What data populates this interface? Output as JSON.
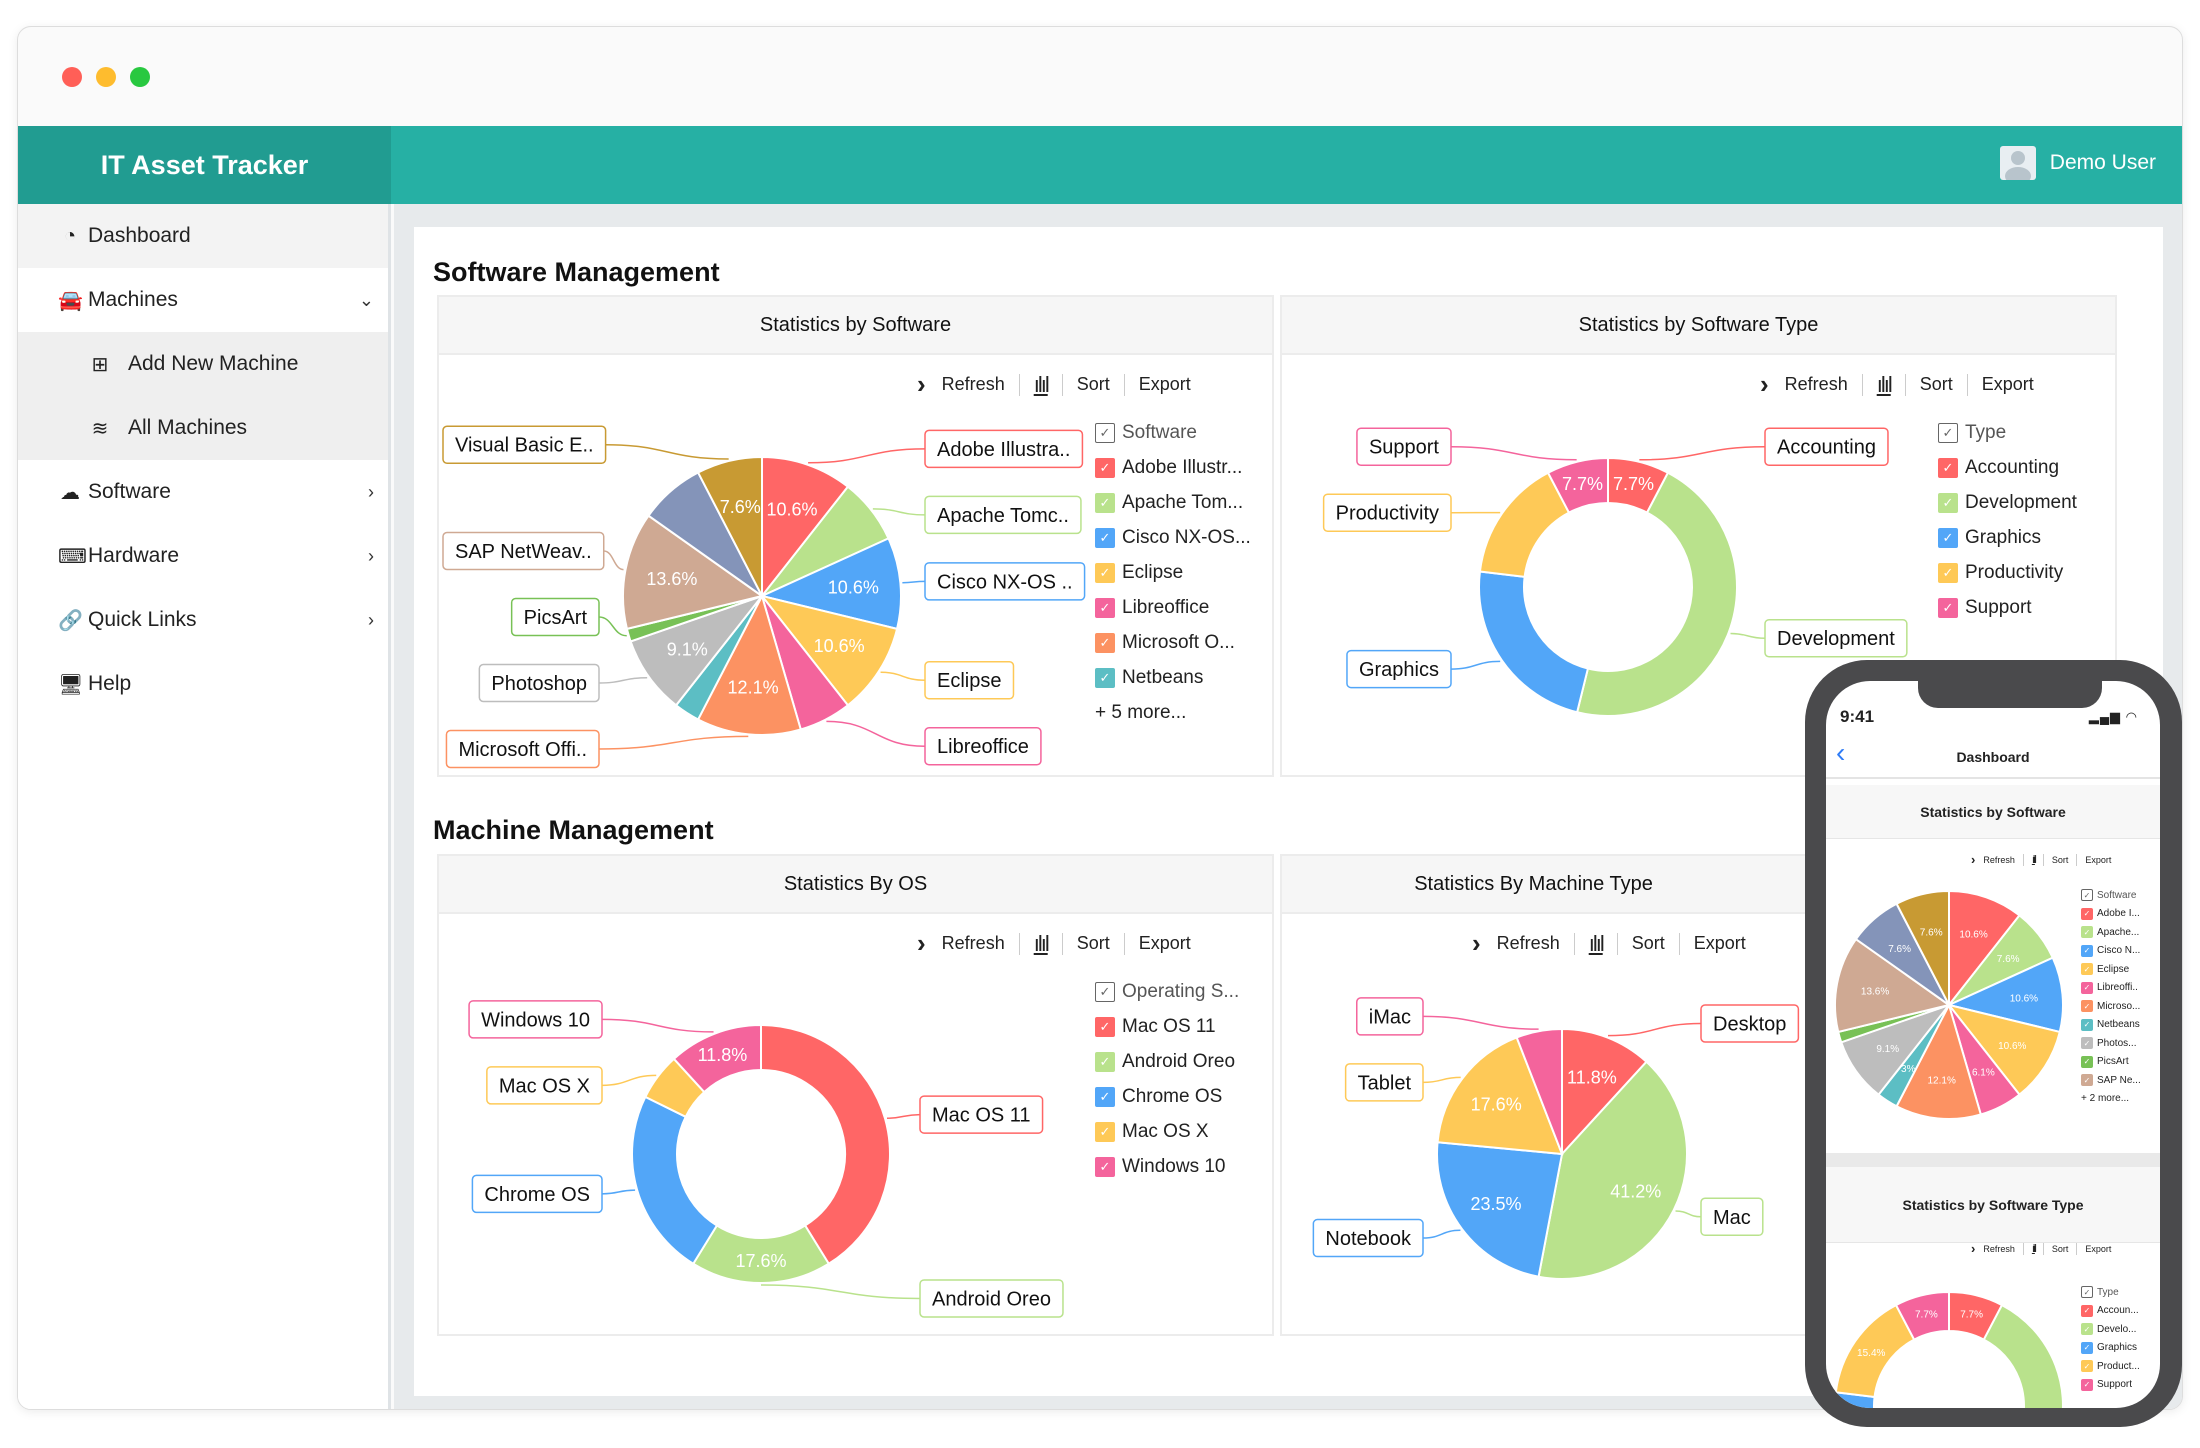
{
  "window": {
    "controls": [
      {
        "name": "close",
        "color": "#ff5f57"
      },
      {
        "name": "minimize",
        "color": "#febc2e"
      },
      {
        "name": "maximize",
        "color": "#28c840"
      }
    ]
  },
  "app": {
    "title": "IT Asset Tracker",
    "user": "Demo User"
  },
  "sidebar": {
    "items": [
      {
        "label": "Dashboard",
        "icon": "dashboard-icon",
        "glyph": "◔",
        "active": true
      },
      {
        "label": "Machines",
        "icon": "car-icon",
        "glyph": "🚘",
        "chevron": "⌄"
      },
      {
        "label": "Add New Machine",
        "icon": "plus-square-icon",
        "glyph": "⊞",
        "sub": true
      },
      {
        "label": "All Machines",
        "icon": "database-icon",
        "glyph": "≋",
        "sub": true
      },
      {
        "label": "Software",
        "icon": "cloud-icon",
        "glyph": "☁",
        "chevron": "›"
      },
      {
        "label": "Hardware",
        "icon": "laptop-icon",
        "glyph": "⌨",
        "chevron": "›"
      },
      {
        "label": "Quick Links",
        "icon": "link-icon",
        "glyph": "🔗",
        "chevron": "›"
      },
      {
        "label": "Help",
        "icon": "monitor-icon",
        "glyph": "🖥"
      }
    ]
  },
  "sections": {
    "software": "Software Management",
    "machine": "Machine Management"
  },
  "toolbar": {
    "arrow": "›",
    "refresh": "Refresh",
    "sort": "Sort",
    "export": "Export"
  },
  "charts": [
    {
      "title": "Statistics by Software",
      "kind": "pie",
      "legend_title": "Software",
      "legend_more": "+ 5 more...",
      "legend_items": [
        "Adobe Illustr...",
        "Apache Tom...",
        "Cisco NX-OS...",
        "Eclipse",
        "Libreoffice",
        "Microsoft O...",
        "Netbeans"
      ],
      "slices": [
        {
          "name": "Adobe Illustrator",
          "value": 10.6,
          "color": "#ff6666",
          "pct_label": "10.6%",
          "callout": "Adobe Illustra.."
        },
        {
          "name": "Apache Tomcat",
          "value": 7.6,
          "color": "#b9e28c",
          "callout": "Apache Tomc.."
        },
        {
          "name": "Cisco NX-OS",
          "value": 10.6,
          "color": "#52a6f8",
          "pct_label": "10.6%",
          "callout": "Cisco NX-OS .."
        },
        {
          "name": "Eclipse",
          "value": 10.6,
          "color": "#fec957",
          "pct_label": "10.6%",
          "callout": "Eclipse"
        },
        {
          "name": "Libreoffice",
          "value": 6.1,
          "color": "#f4649c",
          "callout": "Libreoffice"
        },
        {
          "name": "Microsoft Office",
          "value": 12.1,
          "color": "#fc9262",
          "pct_label": "12.1%",
          "callout": "Microsoft Offi.."
        },
        {
          "name": "Netbeans",
          "value": 3.0,
          "color": "#5cbec4"
        },
        {
          "name": "Photoshop",
          "value": 9.1,
          "color": "#bdbdbd",
          "pct_label": "9.1%",
          "callout": "Photoshop"
        },
        {
          "name": "PicsArt",
          "value": 1.5,
          "color": "#78c156",
          "callout": "PicsArt"
        },
        {
          "name": "SAP NetWeaver",
          "value": 13.6,
          "color": "#cfa993",
          "pct_label": "13.6%",
          "callout": "SAP NetWeav.."
        },
        {
          "name": "",
          "value": 7.6,
          "color": "#8494b9"
        },
        {
          "name": "Visual Basic E",
          "value": 7.6,
          "color": "#c89a33",
          "pct_label": "7.6%",
          "callout": "Visual Basic E.."
        }
      ]
    },
    {
      "title": "Statistics by Software Type",
      "kind": "donut",
      "legend_title": "Type",
      "legend_items": [
        "Accounting",
        "Development",
        "Graphics",
        "Productivity",
        "Support"
      ],
      "slices": [
        {
          "name": "Accounting",
          "value": 7.7,
          "color": "#ff6666",
          "pct_label": "7.7%",
          "callout": "Accounting"
        },
        {
          "name": "Development",
          "value": 46.2,
          "color": "#b9e28c",
          "callout": "Development"
        },
        {
          "name": "Graphics",
          "value": 23.1,
          "color": "#52a6f8",
          "callout": "Graphics"
        },
        {
          "name": "Productivity",
          "value": 15.4,
          "color": "#fec957",
          "callout": "Productivity"
        },
        {
          "name": "Support",
          "value": 7.7,
          "color": "#f4649c",
          "pct_label": "7.7%",
          "callout": "Support"
        }
      ]
    },
    {
      "title": "Statistics By OS",
      "kind": "donut",
      "legend_title": "Operating S...",
      "legend_items": [
        "Mac OS 11",
        "Android Oreo",
        "Chrome OS",
        "Mac OS X",
        "Windows 10"
      ],
      "slices": [
        {
          "name": "Mac OS 11",
          "value": 41.2,
          "color": "#ff6666",
          "callout": "Mac OS 11"
        },
        {
          "name": "Android Oreo",
          "value": 17.6,
          "color": "#b9e28c",
          "pct_label": "17.6%",
          "callout": "Android Oreo"
        },
        {
          "name": "Chrome OS",
          "value": 23.5,
          "color": "#52a6f8",
          "callout": "Chrome OS"
        },
        {
          "name": "Mac OS X",
          "value": 5.9,
          "color": "#fec957",
          "callout": "Mac OS X"
        },
        {
          "name": "Windows 10",
          "value": 11.8,
          "color": "#f4649c",
          "pct_label": "11.8%",
          "callout": "Windows 10"
        }
      ]
    },
    {
      "title": "Statistics By Machine Type",
      "kind": "pie",
      "legend_title": "",
      "legend_items": [],
      "slices": [
        {
          "name": "Desktop",
          "value": 11.8,
          "color": "#ff6666",
          "pct_label": "11.8%",
          "callout": "Desktop"
        },
        {
          "name": "Mac",
          "value": 41.2,
          "color": "#b9e28c",
          "pct_label": "41.2%",
          "callout": "Mac"
        },
        {
          "name": "Notebook",
          "value": 23.5,
          "color": "#52a6f8",
          "pct_label": "23.5%",
          "callout": "Notebook"
        },
        {
          "name": "Tablet",
          "value": 17.6,
          "color": "#fec957",
          "pct_label": "17.6%",
          "callout": "Tablet"
        },
        {
          "name": "iMac",
          "value": 5.9,
          "color": "#f4649c",
          "callout": "iMac"
        }
      ]
    }
  ],
  "mobile": {
    "time": "9:41",
    "back": "‹",
    "nav_title": "Dashboard",
    "cards": [
      {
        "title": "Statistics by Software",
        "kind": "pie",
        "legend_title": "Software",
        "legend_more": "+ 2 more...",
        "legend_items": [
          "Adobe I...",
          "Apache...",
          "Cisco N...",
          "Eclipse",
          "Libreoffi..",
          "Microso...",
          "Netbeans",
          "Photos...",
          "PicsArt",
          "SAP Ne..."
        ],
        "slices": [
          {
            "value": 10.6,
            "color": "#ff6666",
            "pct_label": "10.6%"
          },
          {
            "value": 7.6,
            "color": "#b9e28c",
            "pct_label": "7.6%"
          },
          {
            "value": 10.6,
            "color": "#52a6f8",
            "pct_label": "10.6%"
          },
          {
            "value": 10.6,
            "color": "#fec957",
            "pct_label": "10.6%"
          },
          {
            "value": 6.1,
            "color": "#f4649c",
            "pct_label": "6.1%"
          },
          {
            "value": 12.1,
            "color": "#fc9262",
            "pct_label": "12.1%"
          },
          {
            "value": 3.0,
            "color": "#5cbec4",
            "pct_label": "3%"
          },
          {
            "value": 9.1,
            "color": "#bdbdbd",
            "pct_label": "9.1%"
          },
          {
            "value": 1.5,
            "color": "#78c156"
          },
          {
            "value": 13.6,
            "color": "#cfa993",
            "pct_label": "13.6%"
          },
          {
            "value": 7.6,
            "color": "#8494b9",
            "pct_label": "7.6%"
          },
          {
            "value": 7.6,
            "color": "#c89a33",
            "pct_label": "7.6%"
          }
        ]
      },
      {
        "title": "Statistics by Software Type",
        "kind": "donut",
        "legend_title": "Type",
        "legend_items": [
          "Accoun...",
          "Develo...",
          "Graphics",
          "Product...",
          "Support"
        ],
        "slices": [
          {
            "value": 7.7,
            "color": "#ff6666",
            "pct_label": "7.7%"
          },
          {
            "value": 46.2,
            "color": "#b9e28c"
          },
          {
            "value": 23.1,
            "color": "#52a6f8"
          },
          {
            "value": 15.4,
            "color": "#fec957",
            "pct_label": "15.4%"
          },
          {
            "value": 7.7,
            "color": "#f4649c",
            "pct_label": "7.7%"
          }
        ]
      }
    ]
  }
}
